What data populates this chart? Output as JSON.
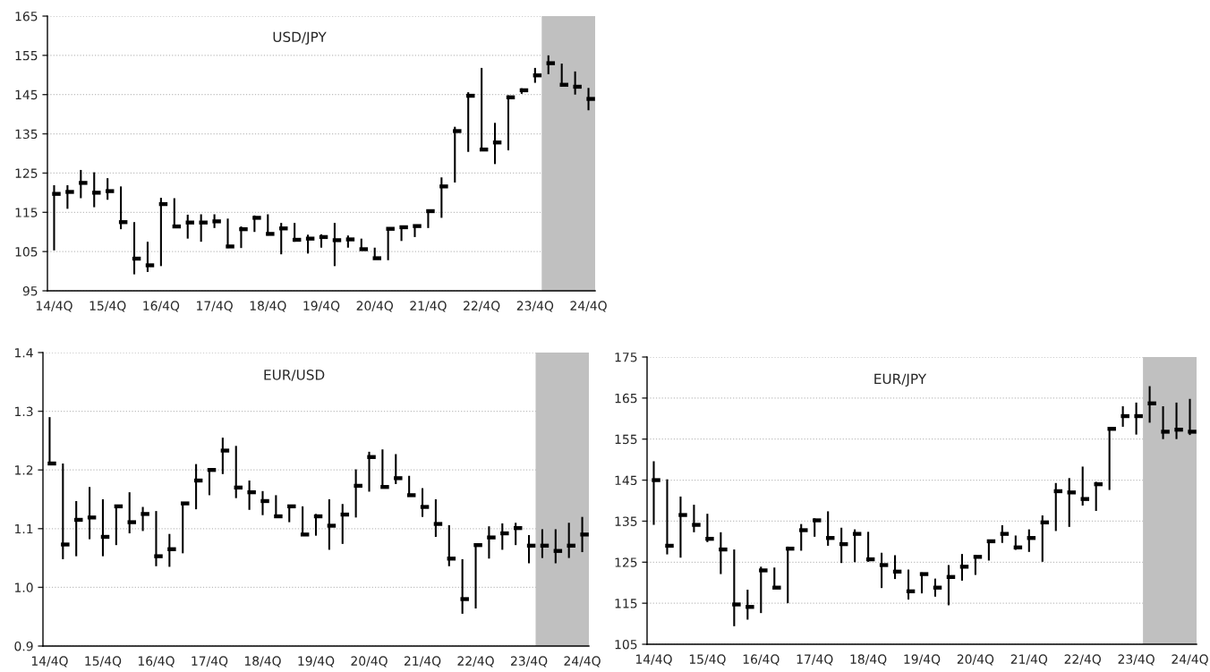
{
  "chart_data": [
    {
      "type": "scatter",
      "title": "USD/JPY",
      "categories": [
        "14/4Q",
        null,
        null,
        null,
        "15/4Q",
        null,
        null,
        null,
        "16/4Q",
        null,
        null,
        null,
        "17/4Q",
        null,
        null,
        null,
        "18/4Q",
        null,
        null,
        null,
        "19/4Q",
        null,
        null,
        null,
        "20/4Q",
        null,
        null,
        null,
        "21/4Q",
        null,
        null,
        null,
        "22/4Q",
        null,
        null,
        null,
        "23/4Q",
        null,
        null,
        null,
        "24/4Q"
      ],
      "series": [
        {
          "color": "#000000",
          "values": [
            119.7,
            120.2,
            122.5,
            120.0,
            120.4,
            112.5,
            103.2,
            101.5,
            117.1,
            111.4,
            112.4,
            112.4,
            112.7,
            106.3,
            110.7,
            113.6,
            109.5,
            110.9,
            108.0,
            108.3,
            108.7,
            107.9,
            108.1,
            105.6,
            103.3,
            110.8,
            111.2,
            111.5,
            115.3,
            121.6,
            135.7,
            144.7,
            131.0,
            132.8,
            144.3,
            146.1,
            149.9,
            153.0,
            147.5,
            147.0,
            143.9
          ],
          "errors": [
            [
              105.3,
              121.9
            ],
            [
              115.9,
              121.9
            ],
            [
              118.6,
              125.8
            ],
            [
              116.3,
              125.2
            ],
            [
              118.2,
              123.7
            ],
            [
              110.7,
              121.6
            ],
            [
              99.2,
              112.5
            ],
            [
              99.8,
              107.5
            ],
            [
              101.3,
              118.7
            ],
            [
              111.4,
              118.6
            ],
            [
              108.3,
              114.4
            ],
            [
              107.5,
              114.5
            ],
            [
              111.0,
              114.5
            ],
            [
              105.9,
              113.4
            ],
            [
              105.9,
              111.4
            ],
            [
              110.0,
              114.2
            ],
            [
              109.1,
              114.5
            ],
            [
              104.3,
              112.3
            ],
            [
              107.5,
              112.3
            ],
            [
              104.5,
              109.3
            ],
            [
              106.0,
              109.4
            ],
            [
              101.3,
              112.3
            ],
            [
              106.0,
              109.1
            ],
            [
              105.3,
              108.3
            ],
            [
              103.0,
              106.0
            ],
            [
              102.8,
              111.0
            ],
            [
              107.7,
              111.5
            ],
            [
              108.7,
              111.7
            ],
            [
              111.0,
              115.5
            ],
            [
              113.6,
              123.9
            ],
            [
              122.6,
              136.8
            ],
            [
              130.4,
              145.6
            ],
            [
              130.8,
              151.8
            ],
            [
              127.3,
              137.8
            ],
            [
              130.8,
              144.8
            ],
            [
              145.2,
              146.6
            ],
            [
              148.0,
              151.8
            ],
            [
              150.2,
              155.0
            ],
            [
              147.1,
              152.9
            ],
            [
              145.0,
              150.9
            ],
            [
              141.0,
              146.7
            ]
          ]
        }
      ],
      "ylim": [
        95,
        165
      ],
      "yticks": [
        95,
        105,
        115,
        125,
        135,
        145,
        155,
        165
      ],
      "bands": [
        {
          "axis": "x",
          "from": "23/4Q",
          "to": "24/4Q",
          "color": "#c0c0c0"
        }
      ],
      "grid": "y"
    },
    {
      "type": "scatter",
      "title": "EUR/USD",
      "categories": [
        "14/4Q",
        null,
        null,
        null,
        "15/4Q",
        null,
        null,
        null,
        "16/4Q",
        null,
        null,
        null,
        "17/4Q",
        null,
        null,
        null,
        "18/4Q",
        null,
        null,
        null,
        "19/4Q",
        null,
        null,
        null,
        "20/4Q",
        null,
        null,
        null,
        "21/4Q",
        null,
        null,
        null,
        "22/4Q",
        null,
        null,
        null,
        "23/4Q",
        null,
        null,
        null,
        "24/4Q"
      ],
      "series": [
        {
          "color": "#000000",
          "values": [
            1.211,
            1.073,
            1.115,
            1.119,
            1.086,
            1.138,
            1.111,
            1.125,
            1.053,
            1.065,
            1.143,
            1.182,
            1.2,
            1.233,
            1.17,
            1.162,
            1.147,
            1.121,
            1.138,
            1.09,
            1.121,
            1.105,
            1.124,
            1.173,
            1.222,
            1.171,
            1.186,
            1.157,
            1.137,
            1.108,
            1.049,
            0.98,
            1.072,
            1.085,
            1.092,
            1.101,
            1.071,
            1.071,
            1.062,
            1.071,
            1.09
          ],
          "errors": [
            [
              1.211,
              1.29
            ],
            [
              1.048,
              1.211
            ],
            [
              1.053,
              1.147
            ],
            [
              1.082,
              1.171
            ],
            [
              1.053,
              1.15
            ],
            [
              1.072,
              1.138
            ],
            [
              1.092,
              1.162
            ],
            [
              1.096,
              1.137
            ],
            [
              1.036,
              1.13
            ],
            [
              1.035,
              1.091
            ],
            [
              1.058,
              1.143
            ],
            [
              1.133,
              1.21
            ],
            [
              1.157,
              1.203
            ],
            [
              1.193,
              1.255
            ],
            [
              1.152,
              1.241
            ],
            [
              1.132,
              1.182
            ],
            [
              1.123,
              1.164
            ],
            [
              1.12,
              1.157
            ],
            [
              1.111,
              1.14
            ],
            [
              1.089,
              1.138
            ],
            [
              1.088,
              1.125
            ],
            [
              1.064,
              1.15
            ],
            [
              1.074,
              1.142
            ],
            [
              1.119,
              1.201
            ],
            [
              1.163,
              1.231
            ],
            [
              1.17,
              1.235
            ],
            [
              1.176,
              1.227
            ],
            [
              1.156,
              1.19
            ],
            [
              1.12,
              1.169
            ],
            [
              1.086,
              1.15
            ],
            [
              1.036,
              1.106
            ],
            [
              0.955,
              1.048
            ],
            [
              0.964,
              1.074
            ],
            [
              1.049,
              1.104
            ],
            [
              1.064,
              1.109
            ],
            [
              1.072,
              1.11
            ],
            [
              1.041,
              1.089
            ],
            [
              1.05,
              1.099
            ],
            [
              1.041,
              1.099
            ],
            [
              1.05,
              1.11
            ],
            [
              1.06,
              1.12
            ]
          ]
        }
      ],
      "ylim": [
        0.9,
        1.4
      ],
      "yticks": [
        {
          "value": 0.9,
          "label": "0.9"
        },
        {
          "value": 1,
          "label": "1.0"
        },
        {
          "value": 1.1,
          "label": "1.1"
        },
        {
          "value": 1.2,
          "label": "1.2"
        },
        {
          "value": 1.3,
          "label": "1.3"
        },
        {
          "value": 1.4,
          "label": "1.4"
        }
      ],
      "bands": [
        {
          "axis": "x",
          "from": "23/4Q",
          "to": "24/4Q",
          "color": "#c0c0c0"
        }
      ],
      "grid": "y"
    },
    {
      "type": "scatter",
      "title": "EUR/JPY",
      "categories": [
        "14/4Q",
        null,
        null,
        null,
        "15/4Q",
        null,
        null,
        null,
        "16/4Q",
        null,
        null,
        null,
        "17/4Q",
        null,
        null,
        null,
        "18/4Q",
        null,
        null,
        null,
        "19/4Q",
        null,
        null,
        null,
        "20/4Q",
        null,
        null,
        null,
        "21/4Q",
        null,
        null,
        null,
        "22/4Q",
        null,
        null,
        null,
        "23/4Q",
        null,
        null,
        null,
        "24/4Q"
      ],
      "series": [
        {
          "color": "#000000",
          "values": [
            145.0,
            129.0,
            136.5,
            134.1,
            130.7,
            128.1,
            114.7,
            114.1,
            123.0,
            118.8,
            128.3,
            132.8,
            135.2,
            130.9,
            129.4,
            131.9,
            125.7,
            124.3,
            122.7,
            117.9,
            122.1,
            118.8,
            121.4,
            123.9,
            126.3,
            130.1,
            131.9,
            128.6,
            130.9,
            134.7,
            142.3,
            142.0,
            140.4,
            144.0,
            157.5,
            160.6,
            160.6,
            163.7,
            156.8,
            157.3,
            156.8
          ],
          "errors": [
            [
              134.1,
              149.6
            ],
            [
              126.9,
              145.2
            ],
            [
              126.1,
              141.0
            ],
            [
              132.3,
              139.0
            ],
            [
              129.9,
              136.8
            ],
            [
              122.1,
              132.3
            ],
            [
              109.4,
              128.1
            ],
            [
              111.0,
              118.3
            ],
            [
              112.6,
              123.9
            ],
            [
              118.6,
              123.7
            ],
            [
              115.0,
              128.8
            ],
            [
              127.8,
              134.3
            ],
            [
              131.2,
              135.7
            ],
            [
              129.0,
              137.4
            ],
            [
              124.8,
              133.4
            ],
            [
              125.0,
              133.0
            ],
            [
              125.1,
              132.4
            ],
            [
              118.7,
              127.3
            ],
            [
              120.9,
              126.7
            ],
            [
              115.9,
              123.2
            ],
            [
              117.4,
              122.5
            ],
            [
              116.6,
              121.0
            ],
            [
              114.5,
              124.3
            ],
            [
              120.5,
              127.0
            ],
            [
              121.9,
              126.8
            ],
            [
              125.4,
              130.1
            ],
            [
              129.7,
              134.0
            ],
            [
              128.0,
              131.5
            ],
            [
              127.5,
              133.0
            ],
            [
              125.1,
              136.4
            ],
            [
              132.6,
              144.3
            ],
            [
              133.6,
              145.5
            ],
            [
              138.8,
              148.3
            ],
            [
              137.5,
              144.6
            ],
            [
              142.6,
              157.5
            ],
            [
              158.0,
              163.0
            ],
            [
              156.1,
              163.9
            ],
            [
              159.0,
              167.9
            ],
            [
              155.0,
              163.0
            ],
            [
              155.0,
              163.9
            ],
            [
              156.0,
              164.8
            ]
          ]
        }
      ],
      "ylim": [
        105,
        175
      ],
      "yticks": [
        105,
        115,
        125,
        135,
        145,
        155,
        165,
        175
      ],
      "bands": [
        {
          "axis": "x",
          "from": "23/4Q",
          "to": "24/4Q",
          "color": "#c0c0c0"
        }
      ],
      "grid": "y"
    }
  ]
}
